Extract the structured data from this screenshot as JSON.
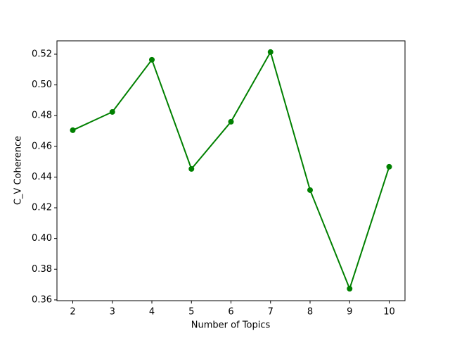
{
  "chart_data": {
    "type": "line",
    "x_label": "Number of Topics",
    "y_label": "C_V Coherence",
    "x": [
      2,
      3,
      4,
      5,
      6,
      7,
      8,
      9,
      10
    ],
    "series": [
      {
        "color": "#008000",
        "values": [
          0.4705,
          0.4824,
          0.5164,
          0.4453,
          0.476,
          0.5214,
          0.4315,
          0.3673,
          0.4467
        ]
      }
    ],
    "xlim": [
      1.6,
      10.4
    ],
    "xticks": [
      2,
      3,
      4,
      5,
      6,
      7,
      8,
      9,
      10
    ],
    "ylim": [
      0.3595,
      0.5287
    ],
    "yticks": [
      0.36,
      0.38,
      {
        "value": 0.4,
        "label": "0.40"
      },
      0.42,
      0.44,
      0.46,
      0.48,
      {
        "value": 0.5,
        "label": "0.50"
      },
      0.52
    ],
    "markers": true
  }
}
